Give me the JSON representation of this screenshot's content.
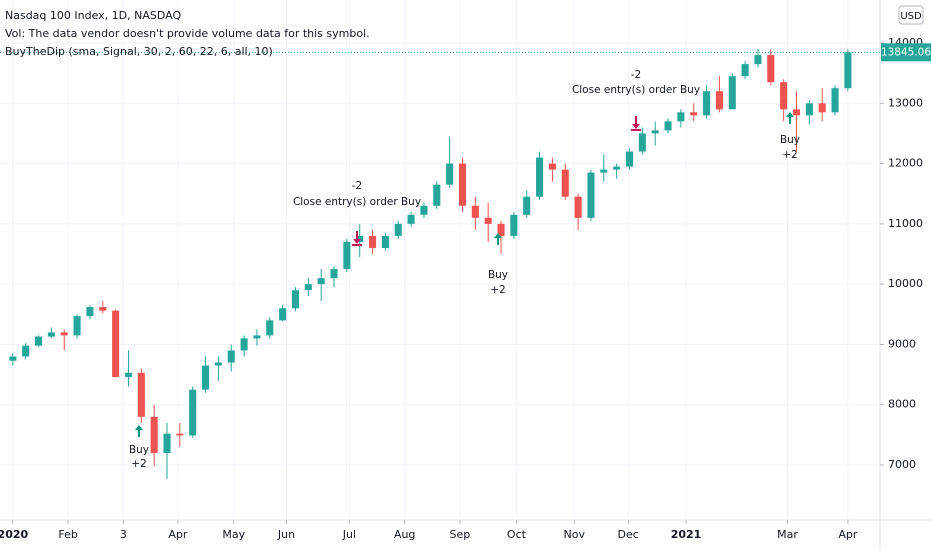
{
  "chart_data": {
    "type": "candlestick",
    "title": "Nasdaq 100 Index, 1D, NASDAQ",
    "subtitle": "Vol: The data vendor doesn't provide volume data for this symbol.",
    "indicator": "BuyTheDip (sma, Signal, 30, 2, 60, 22, 6, all, 10)",
    "currency": "USD",
    "up_color": "#26a69a",
    "down_color": "#ef5350",
    "grid": true,
    "open": [
      8730,
      8800,
      8980,
      9130,
      9200,
      9150,
      9470,
      9620,
      9560,
      8460,
      8530,
      7800,
      7200,
      7520,
      7490,
      8250,
      8650,
      8700,
      8900,
      9100,
      9150,
      9400,
      9600,
      9900,
      10000,
      10100,
      10250,
      10700,
      10800,
      10600,
      10800,
      11000,
      11150,
      11300,
      11650,
      12000,
      11300,
      11100,
      11000,
      10800,
      11150,
      11450,
      12000,
      11900,
      11450,
      11100,
      11850,
      11900,
      11950,
      12200,
      12500,
      12550,
      12700,
      12850,
      12800,
      13200,
      12900,
      13450,
      13650,
      13800,
      13350,
      12900,
      12800,
      13000,
      12850,
      13250
    ],
    "high": [
      8850,
      9020,
      9150,
      9280,
      9250,
      9500,
      9650,
      9720,
      9580,
      8900,
      8600,
      8000,
      7700,
      7700,
      8300,
      8800,
      8800,
      9000,
      9150,
      9250,
      9450,
      9650,
      9950,
      10100,
      10250,
      10300,
      10750,
      11000,
      10900,
      10850,
      11050,
      11200,
      11350,
      11700,
      12450,
      12100,
      11450,
      11350,
      11050,
      11200,
      11550,
      12200,
      12100,
      12000,
      11500,
      11900,
      12150,
      12000,
      12250,
      12600,
      12700,
      12750,
      12900,
      13000,
      13300,
      13450,
      13500,
      13700,
      13900,
      13900,
      13400,
      13200,
      13050,
      13250,
      13300,
      13900
    ],
    "low": [
      8650,
      8760,
      8960,
      9100,
      8900,
      9100,
      9420,
      9520,
      8450,
      8300,
      7700,
      6980,
      6770,
      7300,
      7450,
      8200,
      8400,
      8550,
      8800,
      8980,
      9100,
      9380,
      9550,
      9800,
      9720,
      9950,
      10200,
      10450,
      10500,
      10550,
      10750,
      10950,
      11100,
      11250,
      11600,
      11200,
      10900,
      10700,
      10500,
      10750,
      11100,
      11400,
      11700,
      11400,
      10900,
      11050,
      11700,
      11750,
      11900,
      12150,
      12300,
      12500,
      12600,
      12700,
      12750,
      12850,
      12900,
      13400,
      13600,
      13300,
      12700,
      12200,
      12650,
      12700,
      12800,
      13200
    ],
    "close": [
      8800,
      8980,
      9130,
      9200,
      9150,
      9470,
      9620,
      9560,
      8460,
      8530,
      7800,
      7200,
      7520,
      7490,
      8250,
      8650,
      8700,
      8900,
      9100,
      9150,
      9400,
      9600,
      9900,
      10000,
      10100,
      10250,
      10700,
      10800,
      10600,
      10800,
      11000,
      11150,
      11300,
      11650,
      12000,
      11300,
      11100,
      11000,
      10800,
      11150,
      11450,
      12100,
      11900,
      11450,
      11100,
      11850,
      11900,
      11950,
      12200,
      12500,
      12550,
      12700,
      12850,
      12800,
      13200,
      12900,
      13450,
      13650,
      13800,
      13350,
      12900,
      12800,
      13000,
      12850,
      13250,
      13845.06
    ],
    "xlim": [
      -1,
      67.5
    ],
    "xticks": [
      {
        "value": 0,
        "label": "2020"
      },
      {
        "value": 4.3,
        "label": "Feb"
      },
      {
        "value": 8.6,
        "label": "3"
      },
      {
        "value": 12.85,
        "label": "Apr"
      },
      {
        "value": 17.2,
        "label": "May"
      },
      {
        "value": 21.3,
        "label": "Jun"
      },
      {
        "value": 26.2,
        "label": "Jul"
      },
      {
        "value": 30.5,
        "label": "Aug"
      },
      {
        "value": 34.8,
        "label": "Sep"
      },
      {
        "value": 39.2,
        "label": "Oct"
      },
      {
        "value": 43.7,
        "label": "Nov"
      },
      {
        "value": 47.9,
        "label": "Dec"
      },
      {
        "value": 52.4,
        "label": "2021"
      },
      {
        "value": 60.3,
        "label": "Mar"
      },
      {
        "value": 65,
        "label": "Apr"
      }
    ],
    "ylim": [
      6088,
      14713
    ],
    "yticks": [
      7000,
      8000,
      9000,
      10000,
      11000,
      12000,
      13000,
      14000
    ],
    "signals": [
      {
        "label": "Buy",
        "qty": "+2"
      },
      {
        "label": "Close entry(s) order Buy",
        "qty": "-2"
      },
      {
        "label": "Buy",
        "qty": "+2"
      },
      {
        "label": "Close entry(s) order Buy",
        "qty": "-2"
      },
      {
        "label": "Buy",
        "qty": "+2"
      }
    ]
  }
}
